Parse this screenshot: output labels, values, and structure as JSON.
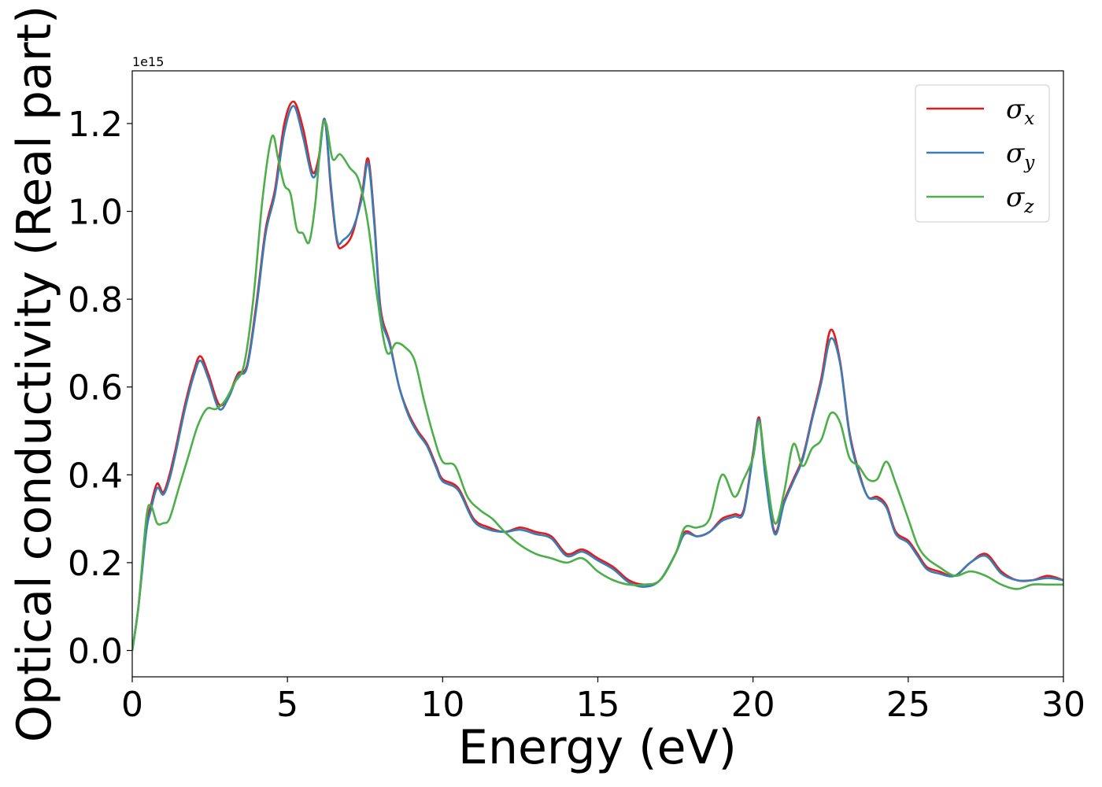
{
  "chart_data": {
    "type": "line",
    "title": "",
    "xlabel": "Energy (eV)",
    "ylabel": "Optical conductivity (Real part)",
    "y_offset_label": "1e15",
    "xlim": [
      0,
      30
    ],
    "ylim": [
      -0.06,
      1.32
    ],
    "xticks": [
      0,
      5,
      10,
      15,
      20,
      25,
      30
    ],
    "xtick_labels": [
      "0",
      "5",
      "10",
      "15",
      "20",
      "25",
      "30"
    ],
    "yticks": [
      0.0,
      0.2,
      0.4,
      0.6,
      0.8,
      1.0,
      1.2
    ],
    "ytick_labels": [
      "0.0",
      "0.2",
      "0.4",
      "0.6",
      "0.8",
      "1.0",
      "1.2"
    ],
    "grid": false,
    "legend_position": "top-right",
    "series": [
      {
        "name": "σx",
        "symbol": "σ",
        "subscript": "x",
        "color": "#e41a1c",
        "x": [
          0,
          0.2,
          0.45,
          0.6,
          0.8,
          1.0,
          1.2,
          1.4,
          1.7,
          2.0,
          2.2,
          2.45,
          2.8,
          3.1,
          3.4,
          3.7,
          4.0,
          4.3,
          4.6,
          4.9,
          5.2,
          5.5,
          5.8,
          6.0,
          6.2,
          6.4,
          6.6,
          6.8,
          7.1,
          7.4,
          7.6,
          7.8,
          8.0,
          8.3,
          8.6,
          8.9,
          9.2,
          9.5,
          9.8,
          10.0,
          10.5,
          11.0,
          11.5,
          12.0,
          12.5,
          13.0,
          13.5,
          14.0,
          14.5,
          15.0,
          15.5,
          16.0,
          16.5,
          17.0,
          17.5,
          17.8,
          18.2,
          18.6,
          19.0,
          19.4,
          19.7,
          20.0,
          20.2,
          20.4,
          20.7,
          21.0,
          21.3,
          21.6,
          21.9,
          22.2,
          22.5,
          22.8,
          23.1,
          23.4,
          23.7,
          24.0,
          24.3,
          24.6,
          25.0,
          25.3,
          25.6,
          26.0,
          26.5,
          27.0,
          27.5,
          28.0,
          28.5,
          29.0,
          29.5,
          30.0
        ],
        "values": [
          0.0,
          0.1,
          0.28,
          0.33,
          0.38,
          0.36,
          0.4,
          0.46,
          0.56,
          0.64,
          0.67,
          0.63,
          0.56,
          0.58,
          0.63,
          0.65,
          0.79,
          0.96,
          1.05,
          1.2,
          1.25,
          1.19,
          1.09,
          1.12,
          1.21,
          1.05,
          0.93,
          0.92,
          0.95,
          1.04,
          1.12,
          0.98,
          0.78,
          0.7,
          0.6,
          0.54,
          0.5,
          0.47,
          0.42,
          0.39,
          0.37,
          0.3,
          0.28,
          0.27,
          0.28,
          0.27,
          0.26,
          0.22,
          0.23,
          0.21,
          0.19,
          0.16,
          0.15,
          0.16,
          0.22,
          0.27,
          0.26,
          0.27,
          0.3,
          0.31,
          0.32,
          0.45,
          0.53,
          0.4,
          0.27,
          0.34,
          0.39,
          0.44,
          0.53,
          0.62,
          0.73,
          0.66,
          0.5,
          0.41,
          0.35,
          0.35,
          0.33,
          0.27,
          0.25,
          0.22,
          0.19,
          0.18,
          0.17,
          0.2,
          0.22,
          0.18,
          0.16,
          0.16,
          0.17,
          0.16
        ]
      },
      {
        "name": "σy",
        "symbol": "σ",
        "subscript": "y",
        "color": "#377eb8",
        "x": [
          0,
          0.2,
          0.45,
          0.6,
          0.8,
          1.0,
          1.2,
          1.4,
          1.7,
          2.0,
          2.2,
          2.45,
          2.8,
          3.1,
          3.4,
          3.7,
          4.0,
          4.3,
          4.6,
          4.9,
          5.2,
          5.5,
          5.8,
          6.0,
          6.2,
          6.4,
          6.6,
          6.8,
          7.1,
          7.4,
          7.6,
          7.8,
          8.0,
          8.3,
          8.6,
          8.9,
          9.2,
          9.5,
          9.8,
          10.0,
          10.5,
          11.0,
          11.5,
          12.0,
          12.5,
          13.0,
          13.5,
          14.0,
          14.5,
          15.0,
          15.5,
          16.0,
          16.5,
          17.0,
          17.5,
          17.8,
          18.2,
          18.6,
          19.0,
          19.4,
          19.7,
          20.0,
          20.2,
          20.4,
          20.7,
          21.0,
          21.3,
          21.6,
          21.9,
          22.2,
          22.5,
          22.8,
          23.1,
          23.4,
          23.7,
          24.0,
          24.3,
          24.6,
          25.0,
          25.3,
          25.6,
          26.0,
          26.5,
          27.0,
          27.5,
          28.0,
          28.5,
          29.0,
          29.5,
          30.0
        ],
        "values": [
          0.0,
          0.1,
          0.27,
          0.32,
          0.37,
          0.355,
          0.39,
          0.45,
          0.55,
          0.63,
          0.66,
          0.62,
          0.55,
          0.575,
          0.625,
          0.645,
          0.78,
          0.95,
          1.04,
          1.18,
          1.24,
          1.17,
          1.08,
          1.11,
          1.21,
          1.06,
          0.935,
          0.935,
          0.96,
          1.03,
          1.11,
          0.97,
          0.77,
          0.695,
          0.6,
          0.535,
          0.495,
          0.465,
          0.415,
          0.385,
          0.365,
          0.295,
          0.275,
          0.27,
          0.275,
          0.265,
          0.255,
          0.215,
          0.225,
          0.205,
          0.185,
          0.155,
          0.145,
          0.16,
          0.22,
          0.265,
          0.26,
          0.27,
          0.295,
          0.305,
          0.315,
          0.445,
          0.525,
          0.395,
          0.265,
          0.335,
          0.385,
          0.435,
          0.525,
          0.61,
          0.71,
          0.655,
          0.495,
          0.405,
          0.35,
          0.345,
          0.325,
          0.265,
          0.245,
          0.215,
          0.185,
          0.175,
          0.17,
          0.2,
          0.215,
          0.175,
          0.16,
          0.16,
          0.165,
          0.16
        ]
      },
      {
        "name": "σz",
        "symbol": "σ",
        "subscript": "z",
        "color": "#4daf4a",
        "x": [
          0,
          0.2,
          0.45,
          0.6,
          0.8,
          1.0,
          1.2,
          1.5,
          1.8,
          2.1,
          2.4,
          2.7,
          3.0,
          3.3,
          3.6,
          3.9,
          4.2,
          4.5,
          4.7,
          4.9,
          5.1,
          5.3,
          5.5,
          5.7,
          5.9,
          6.1,
          6.25,
          6.45,
          6.7,
          7.0,
          7.3,
          7.6,
          7.9,
          8.2,
          8.5,
          8.8,
          9.1,
          9.4,
          9.7,
          10.0,
          10.4,
          10.8,
          11.2,
          11.6,
          12.0,
          12.5,
          13.0,
          13.5,
          14.0,
          14.5,
          15.0,
          15.5,
          16.0,
          16.5,
          17.0,
          17.5,
          17.8,
          18.2,
          18.6,
          19.0,
          19.4,
          19.7,
          20.0,
          20.2,
          20.4,
          20.7,
          21.0,
          21.3,
          21.6,
          21.9,
          22.2,
          22.5,
          22.8,
          23.1,
          23.4,
          23.7,
          24.0,
          24.3,
          24.6,
          25.0,
          25.3,
          25.6,
          26.0,
          26.5,
          27.0,
          27.5,
          28.0,
          28.5,
          29.0,
          29.5,
          30.0
        ],
        "values": [
          0.0,
          0.1,
          0.3,
          0.33,
          0.29,
          0.29,
          0.3,
          0.37,
          0.44,
          0.51,
          0.55,
          0.55,
          0.57,
          0.61,
          0.65,
          0.8,
          1.03,
          1.17,
          1.12,
          1.06,
          1.04,
          0.96,
          0.95,
          0.93,
          1.02,
          1.18,
          1.2,
          1.12,
          1.13,
          1.1,
          1.07,
          0.97,
          0.8,
          0.68,
          0.7,
          0.69,
          0.66,
          0.57,
          0.49,
          0.43,
          0.42,
          0.35,
          0.32,
          0.3,
          0.27,
          0.24,
          0.22,
          0.21,
          0.2,
          0.21,
          0.18,
          0.16,
          0.15,
          0.15,
          0.16,
          0.22,
          0.28,
          0.28,
          0.3,
          0.4,
          0.35,
          0.39,
          0.44,
          0.52,
          0.42,
          0.29,
          0.36,
          0.47,
          0.42,
          0.46,
          0.48,
          0.54,
          0.52,
          0.44,
          0.42,
          0.39,
          0.39,
          0.43,
          0.38,
          0.3,
          0.24,
          0.21,
          0.19,
          0.17,
          0.18,
          0.17,
          0.15,
          0.14,
          0.15,
          0.15,
          0.15
        ]
      }
    ]
  }
}
